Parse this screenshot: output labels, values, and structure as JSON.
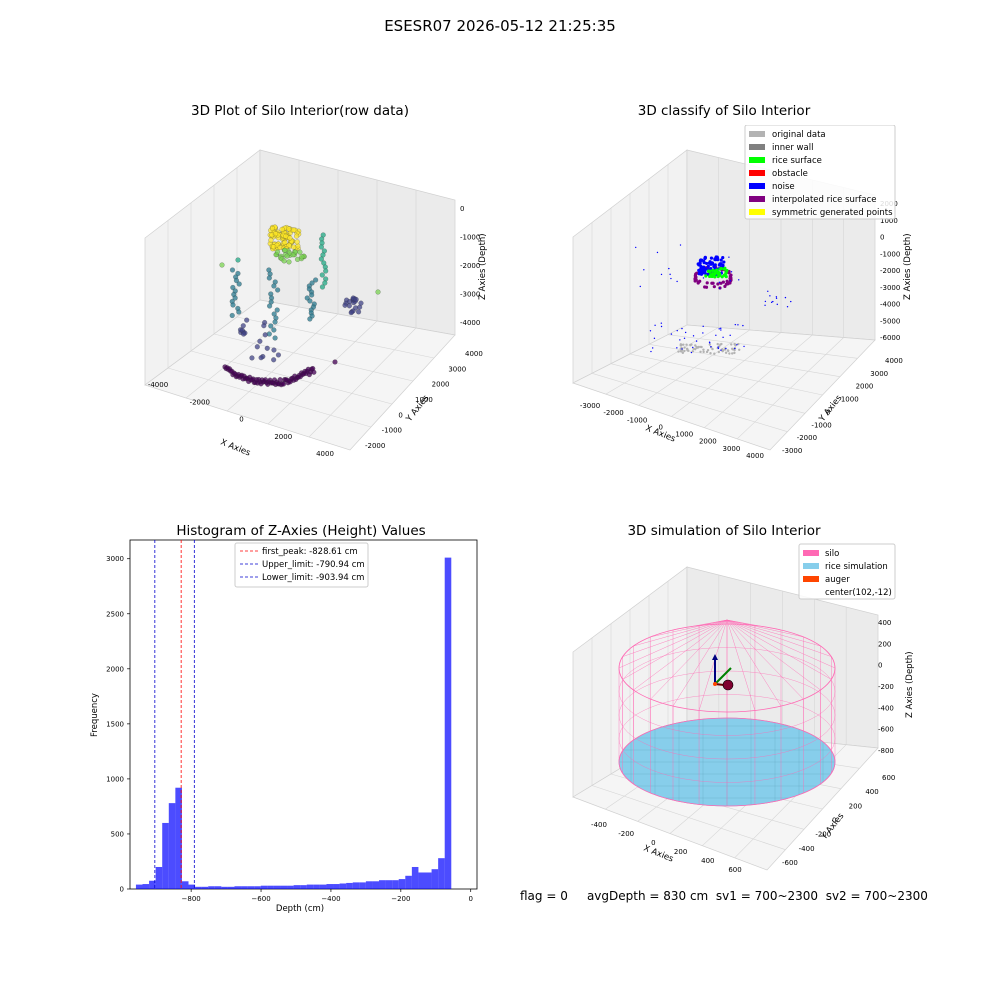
{
  "suptitle": "ESESR07 2026-05-12 21:25:35",
  "status": {
    "flag": "flag = 0",
    "avg": "avgDepth = 830 cm",
    "sv1": "sv1 = 700~2300",
    "sv2": "sv2 = 700~2300"
  },
  "chart_data": [
    {
      "type": "scatter3d",
      "title": "3D Plot of Silo Interior(row data)",
      "xlabel": "X Axies",
      "ylabel": "Y Axies",
      "zlabel": "Z Axies (Depth)",
      "xticks": [
        "-4000",
        "-2000",
        "0",
        "2000",
        "4000"
      ],
      "yticks": [
        "-2000",
        "-1000",
        "0",
        "1000",
        "2000",
        "3000",
        "4000"
      ],
      "zticks": [
        "0",
        "-1000",
        "-2000",
        "-3000",
        "-4000"
      ],
      "colormap": [
        "#fde725",
        "#7ad151",
        "#22a884",
        "#2a788e",
        "#414487",
        "#440154"
      ]
    },
    {
      "type": "scatter3d",
      "title": "3D classify of Silo Interior",
      "xlabel": "X Axies",
      "ylabel": "Y Axies",
      "zlabel": "Z Axies (Depth)",
      "xticks": [
        "-3000",
        "-2000",
        "-1000",
        "0",
        "1000",
        "2000",
        "3000",
        "4000"
      ],
      "yticks": [
        "-3000",
        "-2000",
        "-1000",
        "0",
        "1000",
        "2000",
        "3000",
        "4000"
      ],
      "zticks": [
        "2000",
        "1000",
        "0",
        "-1000",
        "-2000",
        "-3000",
        "-4000",
        "-5000",
        "-6000"
      ],
      "legend": [
        {
          "label": "original data",
          "color": "#b3b3b3"
        },
        {
          "label": "inner wall",
          "color": "#808080"
        },
        {
          "label": "rice surface",
          "color": "#00ff00"
        },
        {
          "label": "obstacle",
          "color": "#ff0000"
        },
        {
          "label": "noise",
          "color": "#0000ff"
        },
        {
          "label": "interpolated rice surface",
          "color": "#800080"
        },
        {
          "label": "symmetric generated points",
          "color": "#ffff00"
        }
      ]
    },
    {
      "type": "histogram",
      "title": "Histogram of Z-Axies (Height) Values",
      "xlabel": "Depth (cm)",
      "ylabel": "Frequency",
      "xlim": [
        -975,
        18
      ],
      "ylim": [
        0,
        3170
      ],
      "xticks": [
        -800,
        -600,
        -400,
        -200,
        0
      ],
      "yticks": [
        0,
        500,
        1000,
        1500,
        2000,
        2500,
        3000
      ],
      "bin_width": 18.8,
      "bin_start": -958,
      "bar_color": "#0000ff",
      "counts": [
        40,
        45,
        75,
        200,
        600,
        780,
        920,
        70,
        40,
        20,
        20,
        25,
        25,
        20,
        20,
        25,
        25,
        25,
        25,
        30,
        30,
        30,
        30,
        30,
        35,
        35,
        40,
        40,
        40,
        45,
        45,
        50,
        55,
        60,
        60,
        70,
        70,
        80,
        80,
        80,
        90,
        120,
        200,
        150,
        150,
        180,
        280,
        3010
      ],
      "vlines": [
        {
          "label": "first_peak: -828.61 cm",
          "x": -828.61,
          "color": "#ff0000"
        },
        {
          "label": "Upper_limit: -790.94 cm",
          "x": -790.94,
          "color": "#0000cd"
        },
        {
          "label": "Lower_limit: -903.94 cm",
          "x": -903.94,
          "color": "#0000cd"
        }
      ]
    },
    {
      "type": "surface3d",
      "title": "3D simulation of Silo Interior",
      "xlabel": "X Axies",
      "ylabel": "Y Axies",
      "zlabel": "Z Axies (Depth)",
      "xticks": [
        "-400",
        "-200",
        "0",
        "200",
        "400",
        "600"
      ],
      "yticks": [
        "-600",
        "-400",
        "-200",
        "0",
        "200",
        "400",
        "600"
      ],
      "zticks": [
        "400",
        "200",
        "0",
        "-200",
        "-400",
        "-600",
        "-800"
      ],
      "legend": [
        {
          "label": "silo",
          "color": "#ff69b4"
        },
        {
          "label": "rice simulation",
          "color": "#87ceeb"
        },
        {
          "label": "auger",
          "color": "#ff4500"
        },
        {
          "label": "center(102,-12)",
          "color": ""
        }
      ]
    }
  ]
}
